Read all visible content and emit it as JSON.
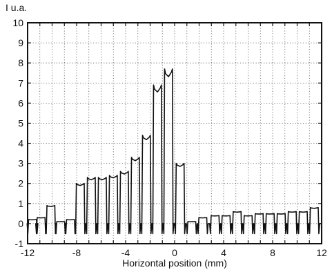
{
  "chart_data": {
    "type": "line",
    "title": "",
    "ylabel": "I  u.a.",
    "xlabel": "Horizontal position (mm)",
    "xlim": [
      -12,
      12
    ],
    "ylim": [
      -1,
      10
    ],
    "grid": true,
    "grid_style": "dotted",
    "x_ticks": [
      -12,
      -8,
      -4,
      0,
      4,
      8,
      12
    ],
    "x_tick_labels": [
      "-12",
      "-8",
      "-4",
      "0",
      "4",
      "8",
      "12"
    ],
    "y_ticks": [
      -1,
      0,
      1,
      2,
      3,
      4,
      5,
      6,
      7,
      8,
      9,
      10
    ],
    "y_tick_labels": [
      "-1",
      "0",
      "1",
      "2",
      "3",
      "4",
      "5",
      "6",
      "7",
      "8",
      "9",
      "10"
    ],
    "line_color": "#111111",
    "series": [
      {
        "pulse_centers": [
          -11.6,
          -10.9,
          -10.1,
          -9.3,
          -8.5,
          -7.7,
          -6.8,
          -5.9,
          -5.0,
          -4.1,
          -3.2,
          -2.3,
          -1.4,
          -0.5,
          0.45,
          1.4,
          2.3,
          3.3,
          4.2,
          5.1,
          6.0,
          6.9,
          7.8,
          8.7,
          9.6,
          10.5,
          11.4
        ],
        "pulse_peaks": [
          0.2,
          0.3,
          0.9,
          0.1,
          0.2,
          2.0,
          2.3,
          2.3,
          2.4,
          2.6,
          3.3,
          4.4,
          6.9,
          7.7,
          3.0,
          0.1,
          0.3,
          0.4,
          0.4,
          0.6,
          0.4,
          0.5,
          0.5,
          0.5,
          0.6,
          0.6,
          0.8
        ],
        "baseline": 0.0,
        "dip": -0.5
      }
    ]
  }
}
